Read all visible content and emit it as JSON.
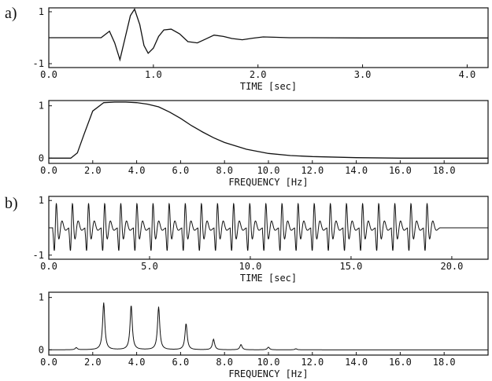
{
  "panels": [
    {
      "label": "a)"
    },
    {
      "label": "b)"
    }
  ],
  "colors": {
    "ink": "#111111",
    "background": "#ffffff"
  },
  "chart_data": [
    {
      "type": "line",
      "panel": "a)",
      "title": "",
      "xlabel": "TIME [sec]",
      "ylabel": "",
      "xlim": [
        0,
        4.2
      ],
      "ylim": [
        -1.15,
        1.15
      ],
      "xticks": [
        "0.0",
        "1.0",
        "2.0",
        "3.0",
        "4.0"
      ],
      "xtick_values": [
        0,
        1,
        2,
        3,
        4
      ],
      "yticks": [
        "1",
        "-1"
      ],
      "ytick_values": [
        1,
        -1
      ],
      "grid": false,
      "series": [
        {
          "x": [
            0.0,
            0.5,
            0.58,
            0.63,
            0.68,
            0.73,
            0.78,
            0.82,
            0.87,
            0.91,
            0.95,
            1.0,
            1.05,
            1.1,
            1.17,
            1.25,
            1.33,
            1.42,
            1.5,
            1.58,
            1.67,
            1.75,
            1.85,
            1.95,
            2.05,
            2.15,
            2.3,
            2.5,
            3.0,
            4.2
          ],
          "y": [
            0.0,
            0.0,
            0.25,
            -0.2,
            -0.85,
            0.0,
            0.85,
            1.1,
            0.5,
            -0.3,
            -0.6,
            -0.4,
            0.05,
            0.3,
            0.33,
            0.15,
            -0.15,
            -0.2,
            -0.05,
            0.1,
            0.05,
            -0.03,
            -0.08,
            -0.02,
            0.03,
            0.02,
            0.0,
            0.0,
            -0.01,
            -0.01
          ]
        }
      ]
    },
    {
      "type": "line",
      "panel": "a)",
      "title": "",
      "xlabel": "FREQUENCY [Hz]",
      "ylabel": "",
      "xlim": [
        0,
        20
      ],
      "ylim": [
        -0.1,
        1.1
      ],
      "xticks": [
        "0.0",
        "2.0",
        "4.0",
        "6.0",
        "8.0",
        "10.0",
        "12.0",
        "14.0",
        "16.0",
        "18.0"
      ],
      "xtick_values": [
        0,
        2,
        4,
        6,
        8,
        10,
        12,
        14,
        16,
        18
      ],
      "yticks": [
        "1",
        "0"
      ],
      "ytick_values": [
        1,
        0
      ],
      "grid": false,
      "series": [
        {
          "x": [
            0,
            1.0,
            1.3,
            1.6,
            2.0,
            2.5,
            3.0,
            3.5,
            4.0,
            4.5,
            5.0,
            5.5,
            6.0,
            6.5,
            7.0,
            7.5,
            8.0,
            9.0,
            10.0,
            11.0,
            12.0,
            14.0,
            16.0,
            20.0
          ],
          "y": [
            0.0,
            0.0,
            0.1,
            0.45,
            0.9,
            1.06,
            1.07,
            1.07,
            1.06,
            1.03,
            0.98,
            0.88,
            0.76,
            0.62,
            0.5,
            0.39,
            0.3,
            0.17,
            0.09,
            0.05,
            0.03,
            0.01,
            0.0,
            0.0
          ]
        }
      ]
    },
    {
      "type": "line",
      "panel": "b)",
      "title": "",
      "xlabel": "TIME [sec]",
      "ylabel": "",
      "xlim": [
        0,
        21.8
      ],
      "ylim": [
        -1.15,
        1.15
      ],
      "xticks": [
        "0.0",
        "5.0",
        "10.0",
        "15.0",
        "20.0"
      ],
      "xtick_values": [
        0,
        5,
        10,
        15,
        20
      ],
      "yticks": [
        "1",
        "-1"
      ],
      "ytick_values": [
        1,
        -1
      ],
      "grid": false,
      "pulse_train": {
        "start": 0.2,
        "period": 0.8,
        "count": 24,
        "tail_to": 21.8
      },
      "series": []
    },
    {
      "type": "line",
      "panel": "b)",
      "title": "",
      "xlabel": "FREQUENCY [Hz]",
      "ylabel": "",
      "xlim": [
        0,
        20
      ],
      "ylim": [
        -0.1,
        1.1
      ],
      "xticks": [
        "0.0",
        "2.0",
        "4.0",
        "6.0",
        "8.0",
        "10.0",
        "12.0",
        "14.0",
        "16.0",
        "18.0"
      ],
      "xtick_values": [
        0,
        2,
        4,
        6,
        8,
        10,
        12,
        14,
        16,
        18
      ],
      "yticks": [
        "1",
        "0"
      ],
      "ytick_values": [
        1,
        0
      ],
      "grid": false,
      "peaks": {
        "x": [
          1.25,
          2.5,
          3.75,
          5.0,
          6.25,
          7.5,
          8.75,
          10.0,
          11.25
        ],
        "y": [
          0.04,
          0.9,
          0.85,
          0.82,
          0.5,
          0.2,
          0.1,
          0.05,
          0.02
        ]
      },
      "series": []
    }
  ]
}
